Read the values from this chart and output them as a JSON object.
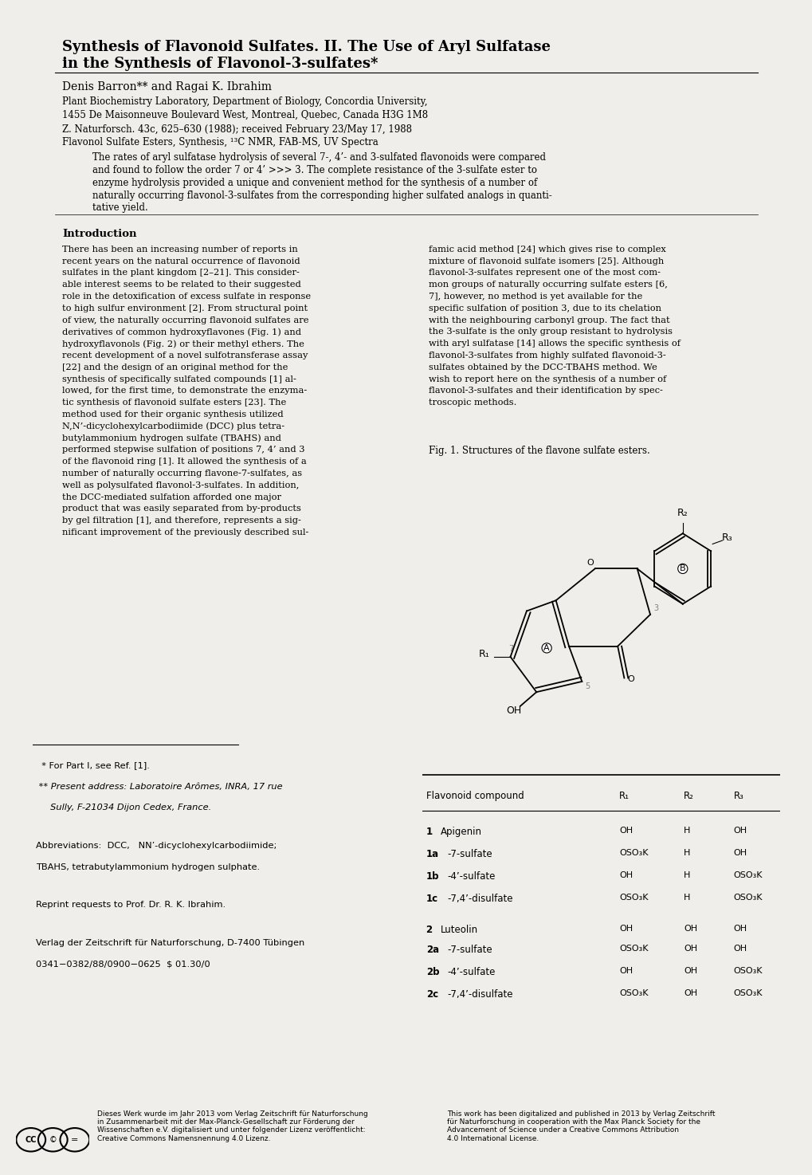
{
  "background_color": "#f0eeea",
  "page_bg": "#ffffff",
  "title_line1": "Synthesis of Flavonoid Sulfates. II. The Use of Aryl Sulfatase",
  "title_line2": "in the Synthesis of Flavonol-3-sulfates*",
  "authors": "Denis Barron** and Ragai K. Ibrahim",
  "affiliation1": "Plant Biochemistry Laboratory, Department of Biology, Concordia University,",
  "affiliation2": "1455 De Maisonneuve Boulevard West, Montreal, Quebec, Canada H3G 1M8",
  "journal_line": "Z. Naturforsch. 43c, 625–630 (1988); received February 23/May 17, 1988",
  "keywords_line": "Flavonol Sulfate Esters, Synthesis, ¹³C NMR, FAB-MS, UV Spectra",
  "abstract": "    The rates of aryl sulfatase hydrolysis of several 7-, 4’- and 3-sulfated flavonoids were compared\nand found to follow the order 7 or 4’ >>> 3. The complete resistance of the 3-sulfate ester to\nenzyme hydrolysis provided a unique and convenient method for the synthesis of a number of\nnaturally occurring flavonol-3-sulfates from the corresponding higher sulfated analogs in quanti-\ntative yield.",
  "intro_heading": "Introduction",
  "intro_col1": "    There has been an increasing number of reports in\nrecent years on the natural occurrence of flavonoid\nsulfates in the plant kingdom [2–21]. This consider-\nable interest seems to be related to their suggested\nrole in the detoxification of excess sulfate in response\nto high sulfur environment [2]. From structural point\nof view, the naturally occurring flavonoid sulfates are\nderivatives of common hydroxyflavones (Fig. 1) and\nhydroxyflavonols (Fig. 2) or their methyl ethers. The\nrecent development of a novel sulfotransferase assay\n[22] and the design of an original method for the\nsynthesis of specifically sulfated compounds [1] al-\nlowed, for the first time, to demonstrate the enzyma-\ntic synthesis of flavonoid sulfate esters [23]. The\nmethod used for their organic synthesis utilized\nN,N’-dicyclohexylcarbodiimide (DCC) plus tetra-\nbutylammonium hydrogen sulfate (TBAHS) and\nperformed stepwise sulfation of positions 7, 4’ and 3\nof the flavonoid ring [1]. It allowed the synthesis of a\nnumber of naturally occurring flavone-7-sulfates, as\nwell as polysulfated flavonol-3-sulfates. In addition,\nthe DCC-mediated sulfation afforded one major\nproduct that was easily separated from by-products\nby gel filtration [1], and therefore, represents a sig-\nnificant improvement of the previously described sul-",
  "intro_col2": "famic acid method [24] which gives rise to complex\nmixture of flavonoid sulfate isomers [25]. Although\nflavonol-3-sulfates represent one of the most com-\nmon groups of naturally occurring sulfate esters [6,\n7], however, no method is yet available for the\nspecific sulfation of position 3, due to its chelation\nwith the neighbouring carbonyl group. The fact that\nthe 3-sulfate is the only group resistant to hydrolysis\nwith aryl sulfatase [14] allows the specific synthesis of\nflavonol-3-sulfates from highly sulfated flavonoid-3-\nsulfates obtained by the DCC-TBAHS method. We\nwish to report here on the synthesis of a number of\nflavonol-3-sulfates and their identification by spec-\ntroscopic methods.",
  "fig1_caption": "Fig. 1. Structures of the flavone sulfate esters.",
  "table_header": [
    "Flavonoid compound",
    "R₁",
    "R₂",
    "R₃"
  ],
  "table_rows": [
    [
      "1  Apigenin",
      "OH",
      "H",
      "OH"
    ],
    [
      "1a -7-sulfate",
      "OSO₃K",
      "H",
      "OH"
    ],
    [
      "1b -4’-sulfate",
      "OH",
      "H",
      "OSO₃K"
    ],
    [
      "1c -7,4’-disulfate",
      "OSO₃K",
      "H",
      "OSO₃K"
    ],
    [
      "2  Luteolin",
      "OH",
      "OH",
      "OH"
    ],
    [
      "2a -7-sulfate",
      "OSO₃K",
      "OH",
      "OH"
    ],
    [
      "2b -4’-sulfate",
      "OH",
      "OH",
      "OSO₃K"
    ],
    [
      "2c -7,4’-disulfate",
      "OSO₃K",
      "OH",
      "OSO₃K"
    ]
  ],
  "footnote1": "  * For Part I, see Ref. [1].",
  "footnote2": " ** Present address: Laboratoire Arômes, INRA, 17 rue",
  "footnote2b": "     Sully, F-21034 Dijon Cedex, France.",
  "footnote3a": "Abbreviations:  DCC,   NN’-dicyclohexylcarbodiimide;",
  "footnote3b": "TBAHS, tetrabutylammonium hydrogen sulphate.",
  "footnote4": "Reprint requests to Prof. Dr. R. K. Ibrahim.",
  "footnote5a": "Verlag der Zeitschrift für Naturforschung, D-7400 Tübingen",
  "footnote5b": "0341−0382/88/0900−0625  $ 01.30/0",
  "footer_left": "Dieses Werk wurde im Jahr 2013 vom Verlag Zeitschrift für Naturforschung\nin Zusammenarbeit mit der Max-Planck-Gesellschaft zur Förderung der\nWissenschaften e.V. digitalisiert und unter folgender Lizenz veröffentlicht:\nCreative Commons Namensnennung 4.0 Lizenz.",
  "footer_right": "This work has been digitalized and published in 2013 by Verlag Zeitschrift\nfür Naturforschung in cooperation with the Max Planck Society for the\nAdvancement of Science under a Creative Commons Attribution\n4.0 International License."
}
